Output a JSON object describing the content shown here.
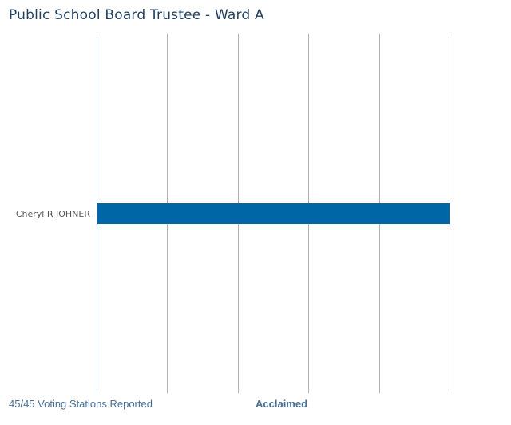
{
  "header": {
    "title": "Public School Board Trustee - Ward A"
  },
  "footer": {
    "stations_reported": "45/45 Voting Stations Reported",
    "result_status": "Acclaimed"
  },
  "chart_data": {
    "type": "bar",
    "orientation": "horizontal",
    "title": "Public School Board Trustee - Ward A",
    "categories": [
      "Cheryl R JOHNER"
    ],
    "values": [
      100
    ],
    "xlim": [
      0,
      100
    ],
    "grid": true,
    "tick_count": 5,
    "colors": {
      "bar": "#0066a6",
      "grid": "#b0b0b0",
      "axis": "#a9c4dc"
    }
  }
}
